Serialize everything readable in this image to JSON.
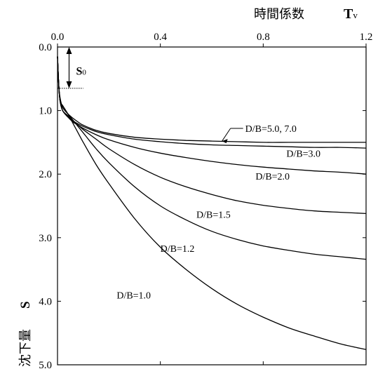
{
  "chart_data": {
    "type": "line",
    "title": "",
    "xlabel": "時間係数",
    "xlabel_symbol": "T",
    "xlabel_subscript": "v",
    "ylabel": "沈下量",
    "ylabel_symbol": "S",
    "xlim": [
      0.0,
      1.2
    ],
    "ylim": [
      0.0,
      5.0
    ],
    "y_inverted": true,
    "x_axis_position": "top",
    "grid": false,
    "x_ticks": [
      0.0,
      0.4,
      0.8,
      1.2
    ],
    "x_tick_labels": [
      "0.0",
      "0.4",
      "0.8",
      "1.2"
    ],
    "y_ticks": [
      0.0,
      1.0,
      2.0,
      3.0,
      4.0,
      5.0
    ],
    "y_tick_labels": [
      "0.0",
      "1.0",
      "2.0",
      "3.0",
      "4.0",
      "5.0"
    ],
    "annotations": {
      "s0_label": "S",
      "s0_subscript": "0",
      "s0_range": [
        0.0,
        0.65
      ],
      "s0_x": 0.045
    },
    "series": [
      {
        "name": "D/B=5.0, 7.0",
        "x": [
          0,
          0.005,
          0.01,
          0.02,
          0.04,
          0.06,
          0.08,
          0.1,
          0.15,
          0.2,
          0.3,
          0.4,
          0.5,
          0.6,
          0.7,
          0.8,
          0.9,
          1.0,
          1.1,
          1.2
        ],
        "y": [
          0.15,
          0.6,
          0.8,
          0.95,
          1.05,
          1.12,
          1.18,
          1.23,
          1.31,
          1.36,
          1.42,
          1.45,
          1.47,
          1.48,
          1.49,
          1.5,
          1.5,
          1.5,
          1.5,
          1.5
        ]
      },
      {
        "name": "D/B=3.0",
        "x": [
          0,
          0.005,
          0.01,
          0.02,
          0.04,
          0.06,
          0.08,
          0.1,
          0.15,
          0.2,
          0.3,
          0.4,
          0.5,
          0.6,
          0.7,
          0.8,
          0.9,
          1.0,
          1.1,
          1.2
        ],
        "y": [
          0.15,
          0.6,
          0.85,
          1.0,
          1.1,
          1.16,
          1.21,
          1.25,
          1.33,
          1.38,
          1.45,
          1.49,
          1.52,
          1.54,
          1.55,
          1.56,
          1.57,
          1.58,
          1.58,
          1.59
        ]
      },
      {
        "name": "D/B=2.0",
        "x": [
          0,
          0.005,
          0.01,
          0.02,
          0.04,
          0.06,
          0.08,
          0.1,
          0.15,
          0.2,
          0.3,
          0.4,
          0.5,
          0.6,
          0.7,
          0.8,
          0.9,
          1.0,
          1.1,
          1.2
        ],
        "y": [
          0.15,
          0.6,
          0.85,
          1.0,
          1.1,
          1.18,
          1.23,
          1.28,
          1.38,
          1.46,
          1.58,
          1.67,
          1.74,
          1.8,
          1.85,
          1.89,
          1.92,
          1.95,
          1.97,
          2.0
        ]
      },
      {
        "name": "D/B=1.5",
        "x": [
          0,
          0.005,
          0.01,
          0.02,
          0.04,
          0.06,
          0.08,
          0.1,
          0.15,
          0.2,
          0.3,
          0.4,
          0.5,
          0.6,
          0.7,
          0.8,
          0.9,
          1.0,
          1.1,
          1.2
        ],
        "y": [
          0.15,
          0.6,
          0.85,
          1.0,
          1.08,
          1.16,
          1.23,
          1.3,
          1.45,
          1.6,
          1.85,
          2.05,
          2.2,
          2.32,
          2.42,
          2.49,
          2.54,
          2.58,
          2.6,
          2.62
        ]
      },
      {
        "name": "D/B=1.2",
        "x": [
          0,
          0.005,
          0.01,
          0.02,
          0.04,
          0.06,
          0.08,
          0.1,
          0.15,
          0.2,
          0.3,
          0.4,
          0.5,
          0.6,
          0.7,
          0.8,
          0.9,
          1.0,
          1.1,
          1.2
        ],
        "y": [
          0.15,
          0.6,
          0.85,
          0.95,
          1.05,
          1.15,
          1.25,
          1.35,
          1.6,
          1.82,
          2.2,
          2.5,
          2.72,
          2.9,
          3.03,
          3.13,
          3.2,
          3.26,
          3.3,
          3.34
        ]
      },
      {
        "name": "D/B=1.0",
        "x": [
          0,
          0.005,
          0.01,
          0.02,
          0.04,
          0.06,
          0.08,
          0.1,
          0.15,
          0.2,
          0.3,
          0.4,
          0.5,
          0.6,
          0.7,
          0.8,
          0.9,
          1.0,
          1.1,
          1.2
        ],
        "y": [
          0.15,
          0.6,
          0.85,
          0.92,
          1.05,
          1.2,
          1.35,
          1.5,
          1.85,
          2.15,
          2.7,
          3.15,
          3.5,
          3.8,
          4.05,
          4.25,
          4.42,
          4.55,
          4.67,
          4.76
        ]
      }
    ],
    "series_labels": [
      {
        "text": "D/B=5.0, 7.0",
        "x": 0.73,
        "y": 1.28,
        "leader_to": [
          0.64,
          1.48
        ]
      },
      {
        "text": "D/B=3.0",
        "x": 0.89,
        "y": 1.67
      },
      {
        "text": "D/B=2.0",
        "x": 0.77,
        "y": 2.03
      },
      {
        "text": "D/B=1.5",
        "x": 0.54,
        "y": 2.63
      },
      {
        "text": "D/B=1.2",
        "x": 0.4,
        "y": 3.17
      },
      {
        "text": "D/B=1.0",
        "x": 0.23,
        "y": 3.9
      }
    ]
  }
}
